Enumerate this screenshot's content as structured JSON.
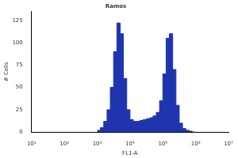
{
  "chart_data": {
    "type": "histogram",
    "title": "Ramos",
    "x_label": "FL1-A",
    "y_label": "# Cells",
    "bins": [
      1000,
      1259,
      1585,
      1995,
      2512,
      3162,
      3981,
      5012,
      6310,
      7943,
      10000,
      12589,
      15849,
      19953,
      25119,
      31623,
      39811,
      50119,
      63096,
      79433,
      100000,
      125893,
      158489,
      199526,
      251189,
      316228,
      398107,
      501187,
      630957,
      794328,
      1000000
    ],
    "values": [
      2,
      5,
      12,
      25,
      50,
      90,
      122,
      110,
      60,
      25,
      14,
      12,
      12,
      13,
      14,
      15,
      16,
      18,
      22,
      35,
      65,
      105,
      110,
      70,
      30,
      10,
      4,
      2,
      1,
      0
    ],
    "color": "#1f35b0",
    "log": "x",
    "xlim": [
      10,
      10000000
    ],
    "xticks": [
      {
        "value": 10,
        "label": "10¹"
      },
      {
        "value": 100,
        "label": "10²"
      },
      {
        "value": 1000,
        "label": "10³"
      },
      {
        "value": 10000,
        "label": "10⁴"
      },
      {
        "value": 100000,
        "label": "10⁵"
      },
      {
        "value": 1000000,
        "label": "10⁶"
      },
      {
        "value": 10000000,
        "label": "10⁷"
      }
    ],
    "ylim": [
      0,
      135
    ],
    "yticks": [
      0,
      25,
      50,
      75,
      100,
      125
    ],
    "grid": false
  }
}
